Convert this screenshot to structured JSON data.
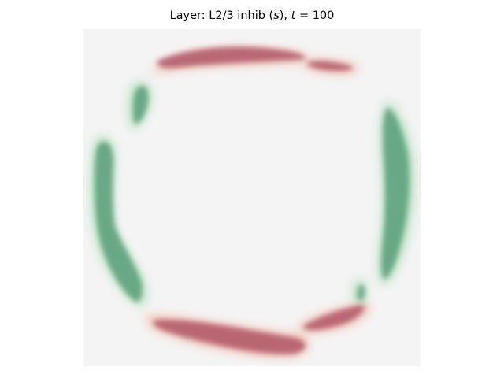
{
  "figure": {
    "title": {
      "prefix": "Layer: L2/3 inhib (",
      "var": "s",
      "middle": "), ",
      "tvar": "t",
      "suffix": " = 100"
    },
    "colors": {
      "background": "#f4f4f4",
      "inhibitory_blob": "#b0586a",
      "excitatory_blob": "#5a9e7c",
      "halo_red": "#f0b8a6",
      "halo_green": "#b9e2c1"
    }
  }
}
